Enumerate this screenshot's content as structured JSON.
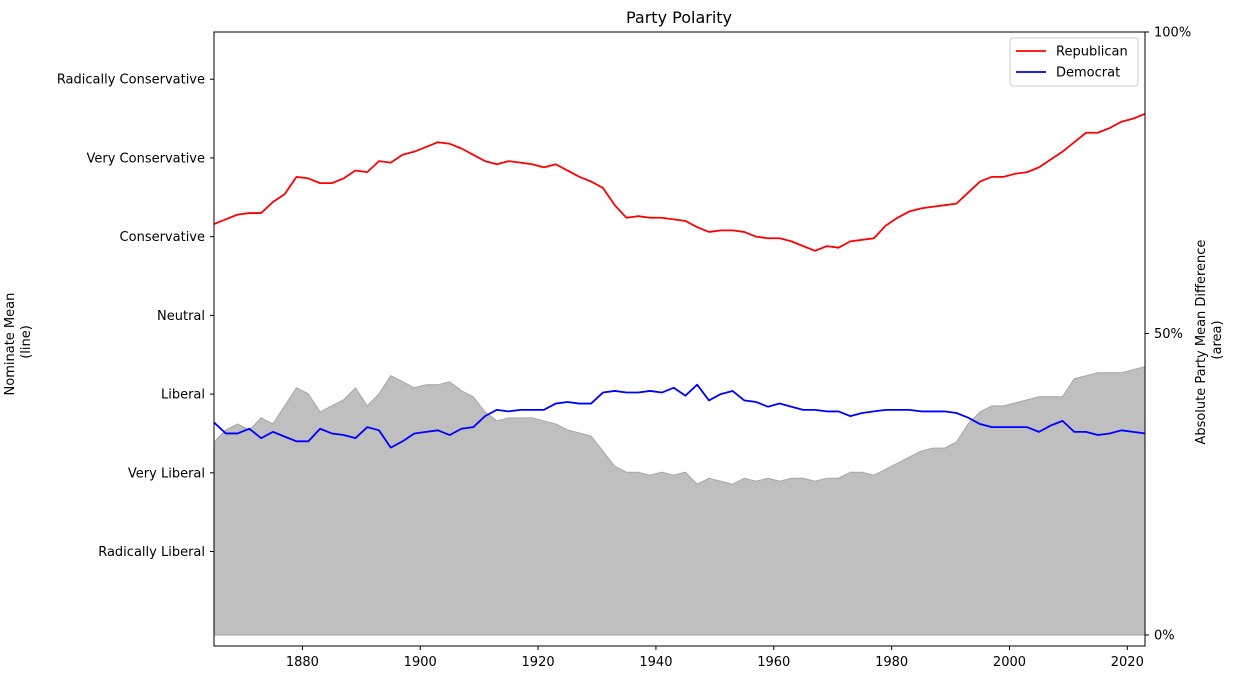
{
  "chart_data": {
    "type": "line",
    "title": "Party Polarity",
    "xlabel": "",
    "ylabel_left": [
      "Nominate Mean",
      "(line)"
    ],
    "ylabel_right": [
      "Absolute Party Mean Difference",
      "(area)"
    ],
    "xlim": [
      1865,
      2023
    ],
    "ylim_left": [
      -1.05,
      0.9
    ],
    "ylim_right": [
      0,
      100
    ],
    "x_ticks": [
      1880,
      1900,
      1920,
      1940,
      1960,
      1980,
      2000,
      2020
    ],
    "y_ticks_left": [
      {
        "value": -0.75,
        "label": "Radically Liberal"
      },
      {
        "value": -0.5,
        "label": "Very Liberal"
      },
      {
        "value": -0.25,
        "label": "Liberal"
      },
      {
        "value": 0,
        "label": "Neutral"
      },
      {
        "value": 0.25,
        "label": "Conservative"
      },
      {
        "value": 0.5,
        "label": "Very Conservative"
      },
      {
        "value": 0.75,
        "label": "Radically Conservative"
      }
    ],
    "y_ticks_right": [
      {
        "value": 0,
        "label": "0%"
      },
      {
        "value": 50,
        "label": "50%"
      },
      {
        "value": 100,
        "label": "100%"
      }
    ],
    "grid": false,
    "legend_position": "top-right",
    "x": [
      1865,
      1867,
      1869,
      1871,
      1873,
      1875,
      1877,
      1879,
      1881,
      1883,
      1885,
      1887,
      1889,
      1891,
      1893,
      1895,
      1897,
      1899,
      1901,
      1903,
      1905,
      1907,
      1909,
      1911,
      1913,
      1915,
      1917,
      1919,
      1921,
      1923,
      1925,
      1927,
      1929,
      1931,
      1933,
      1935,
      1937,
      1939,
      1941,
      1943,
      1945,
      1947,
      1949,
      1951,
      1953,
      1955,
      1957,
      1959,
      1961,
      1963,
      1965,
      1967,
      1969,
      1971,
      1973,
      1975,
      1977,
      1979,
      1981,
      1983,
      1985,
      1987,
      1989,
      1991,
      1993,
      1995,
      1997,
      1999,
      2001,
      2003,
      2005,
      2007,
      2009,
      2011,
      2013,
      2015,
      2017,
      2019,
      2021,
      2023
    ],
    "series": [
      {
        "name": "Republican",
        "color": "#ff0000",
        "kind": "line",
        "axis": "left",
        "values": [
          0.29,
          0.305,
          0.32,
          0.325,
          0.325,
          0.36,
          0.385,
          0.44,
          0.435,
          0.42,
          0.42,
          0.435,
          0.46,
          0.455,
          0.49,
          0.485,
          0.51,
          0.52,
          0.535,
          0.55,
          0.545,
          0.53,
          0.51,
          0.49,
          0.48,
          0.49,
          0.485,
          0.48,
          0.47,
          0.48,
          0.46,
          0.44,
          0.425,
          0.405,
          0.35,
          0.31,
          0.315,
          0.31,
          0.31,
          0.305,
          0.3,
          0.28,
          0.265,
          0.27,
          0.27,
          0.265,
          0.25,
          0.245,
          0.245,
          0.235,
          0.22,
          0.205,
          0.22,
          0.215,
          0.235,
          0.24,
          0.245,
          0.285,
          0.31,
          0.33,
          0.34,
          0.345,
          0.35,
          0.355,
          0.39,
          0.425,
          0.44,
          0.44,
          0.45,
          0.455,
          0.47,
          0.495,
          0.52,
          0.55,
          0.58,
          0.58,
          0.595,
          0.615,
          0.625,
          0.64
        ]
      },
      {
        "name": "Democrat",
        "color": "#0000ff",
        "kind": "line",
        "axis": "left",
        "values": [
          -0.34,
          -0.375,
          -0.375,
          -0.36,
          -0.39,
          -0.37,
          -0.385,
          -0.4,
          -0.4,
          -0.36,
          -0.375,
          -0.38,
          -0.39,
          -0.355,
          -0.365,
          -0.42,
          -0.4,
          -0.375,
          -0.37,
          -0.365,
          -0.38,
          -0.36,
          -0.355,
          -0.32,
          -0.3,
          -0.305,
          -0.3,
          -0.3,
          -0.3,
          -0.28,
          -0.275,
          -0.28,
          -0.28,
          -0.245,
          -0.24,
          -0.245,
          -0.245,
          -0.24,
          -0.245,
          -0.23,
          -0.255,
          -0.22,
          -0.27,
          -0.25,
          -0.24,
          -0.27,
          -0.275,
          -0.29,
          -0.28,
          -0.29,
          -0.3,
          -0.3,
          -0.305,
          -0.305,
          -0.32,
          -0.31,
          -0.305,
          -0.3,
          -0.3,
          -0.3,
          -0.305,
          -0.305,
          -0.305,
          -0.31,
          -0.325,
          -0.345,
          -0.355,
          -0.355,
          -0.355,
          -0.355,
          -0.37,
          -0.35,
          -0.335,
          -0.37,
          -0.37,
          -0.38,
          -0.375,
          -0.365,
          -0.37,
          -0.375
        ]
      },
      {
        "name": "Absolute Party Mean Difference",
        "color": "#bfbfbf",
        "kind": "area",
        "axis": "right",
        "values": [
          32,
          34,
          35,
          34,
          36,
          35,
          38,
          41,
          40,
          37,
          38,
          39,
          41,
          38,
          40,
          43,
          42,
          41,
          41.5,
          41.5,
          42,
          40.5,
          39.5,
          37,
          35.5,
          36,
          36,
          36,
          35.5,
          35,
          34,
          33.5,
          33,
          30.5,
          28,
          27,
          27,
          26.5,
          27,
          26.5,
          27,
          25,
          26,
          25.5,
          25,
          26,
          25.5,
          26,
          25.5,
          26,
          26,
          25.5,
          26,
          26,
          27,
          27,
          26.5,
          27.5,
          28.5,
          29.5,
          30.5,
          31,
          31,
          32,
          35,
          37,
          38,
          38,
          38.5,
          39,
          39.5,
          39.5,
          39.5,
          42.5,
          43,
          43.5,
          43.5,
          43.5,
          44,
          44.5
        ]
      }
    ]
  }
}
